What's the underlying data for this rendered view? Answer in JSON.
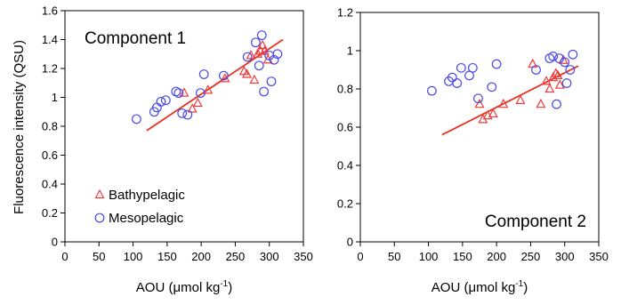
{
  "figure": {
    "ylabel": "Fluorescence intensity (QSU)",
    "marker_colors": {
      "bathypelagic": "#ee3b3b",
      "mesopelagic": "#4a4ae6",
      "fit_line": "#e8321f"
    },
    "legend": {
      "bathypelagic": "Bathypelagic",
      "mesopelagic": "Mesopelagic",
      "bathypelagic_marker": "triangle",
      "mesopelagic_marker": "circle",
      "placement": "lower-left of left panel"
    }
  },
  "chart_data": [
    {
      "type": "scatter",
      "title": "Component 1",
      "xlabel": "AOU (μmol kg-1)",
      "xlabel_main": "AOU (μmol kg",
      "xlabel_sup": "-1",
      "xlabel_tail": ")",
      "xlim": [
        0,
        350
      ],
      "ylim": [
        0,
        1.6
      ],
      "xticks": [
        "0",
        "50",
        "100",
        "150",
        "200",
        "250",
        "300",
        "350"
      ],
      "yticks": [
        "0",
        "0.2",
        "0.4",
        "0.6",
        "0.8",
        "1",
        "1.2",
        "1.4",
        "1.6"
      ],
      "grid": false,
      "series": [
        {
          "name": "Bathypelagic",
          "marker": "triangle",
          "x": [
            175,
            187,
            195,
            210,
            235,
            263,
            267,
            273,
            278,
            283,
            287,
            290,
            293,
            298
          ],
          "y": [
            1.03,
            0.92,
            0.96,
            1.05,
            1.13,
            1.18,
            1.16,
            1.29,
            1.12,
            1.3,
            1.32,
            1.36,
            1.32,
            1.26
          ]
        },
        {
          "name": "Mesopelagic",
          "marker": "circle",
          "x": [
            105,
            131,
            135,
            141,
            148,
            163,
            167,
            172,
            180,
            199,
            204,
            233,
            268,
            280,
            285,
            289,
            292,
            300,
            303,
            307,
            312
          ],
          "y": [
            0.85,
            0.9,
            0.93,
            0.97,
            0.98,
            1.04,
            1.03,
            0.89,
            0.88,
            1.03,
            1.16,
            1.15,
            1.28,
            1.38,
            1.22,
            1.43,
            1.04,
            1.29,
            1.11,
            1.26,
            1.3
          ]
        }
      ],
      "fit_line": {
        "x": [
          120,
          320
        ],
        "y": [
          0.77,
          1.4
        ]
      }
    },
    {
      "type": "scatter",
      "title": "Component 2",
      "xlabel": "AOU (μmol kg-1)",
      "xlabel_main": "AOU (μmol kg",
      "xlabel_sup": "-1",
      "xlabel_tail": ")",
      "xlim": [
        0,
        350
      ],
      "ylim": [
        0,
        1.2
      ],
      "xticks": [
        "0",
        "50",
        "100",
        "150",
        "200",
        "250",
        "300",
        "350"
      ],
      "yticks": [
        "0",
        "0.2",
        "0.4",
        "0.6",
        "0.8",
        "1",
        "1.2"
      ],
      "grid": false,
      "series": [
        {
          "name": "Bathypelagic",
          "marker": "triangle",
          "x": [
            175,
            180,
            187,
            195,
            210,
            235,
            253,
            265,
            273,
            278,
            283,
            287,
            290,
            293,
            298
          ],
          "y": [
            0.72,
            0.64,
            0.66,
            0.67,
            0.72,
            0.74,
            0.93,
            0.72,
            0.84,
            0.8,
            0.86,
            0.88,
            0.87,
            0.82,
            0.95
          ]
        },
        {
          "name": "Mesopelagic",
          "marker": "circle",
          "x": [
            105,
            130,
            135,
            142,
            148,
            160,
            165,
            173,
            193,
            200,
            258,
            278,
            283,
            288,
            292,
            300,
            303,
            308,
            312
          ],
          "y": [
            0.79,
            0.84,
            0.86,
            0.83,
            0.91,
            0.87,
            0.91,
            0.75,
            0.81,
            0.93,
            0.9,
            0.96,
            0.97,
            0.72,
            0.96,
            0.94,
            0.83,
            0.9,
            0.98
          ]
        }
      ],
      "fit_line": {
        "x": [
          120,
          320
        ],
        "y": [
          0.56,
          0.92
        ]
      }
    }
  ]
}
